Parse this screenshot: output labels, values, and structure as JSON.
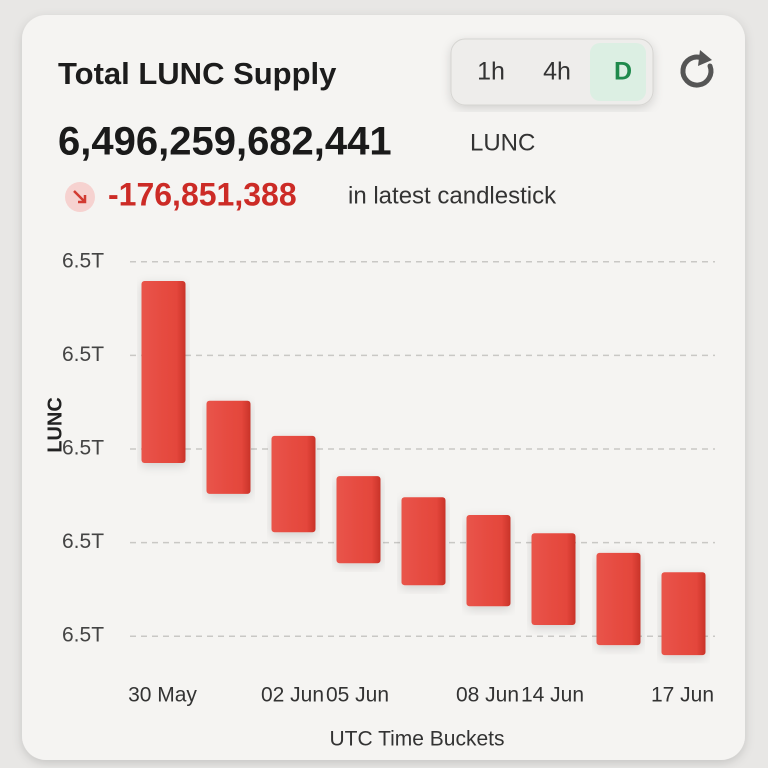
{
  "header": {
    "title": "Total LUNC Supply",
    "intervals": [
      "1h",
      "4h",
      "D"
    ],
    "active_interval": "D",
    "total": "6,496,259,682,441",
    "unit": "LUNC",
    "change": "-176,851,388",
    "change_note": "in latest candlestick"
  },
  "chart_data": {
    "type": "candlestick",
    "categories": [
      "30 May",
      null,
      "02 Jun",
      "05 Jun",
      null,
      "08 Jun",
      "14 Jun",
      null,
      "17 Jun"
    ],
    "series": [
      {
        "name": "LUNC",
        "color": "#e5473c",
        "open": [
          6497059000000,
          6496803000000,
          6496728000000,
          6496642000000,
          6496597000000,
          6496559000000,
          6496520000000,
          6496478000000,
          6496436533829
        ],
        "close": [
          6496670000000,
          6496604000000,
          6496522000000,
          6496456000000,
          6496409000000,
          6496364000000,
          6496324000000,
          6496281000000,
          6496259682441
        ]
      }
    ],
    "ylabel": "LUNC",
    "xlabel": "UTC Time Buckets",
    "ylim": [
      6496200000000,
      6497200000000
    ],
    "yticks": [
      {
        "value": 6497100000000,
        "label": "6.5T"
      },
      {
        "value": 6496900000000,
        "label": "6.5T"
      },
      {
        "value": 6496700000000,
        "label": "6.5T"
      },
      {
        "value": 6496500000000,
        "label": "6.5T"
      },
      {
        "value": 6496300000000,
        "label": "6.5T"
      }
    ],
    "grid": true
  }
}
